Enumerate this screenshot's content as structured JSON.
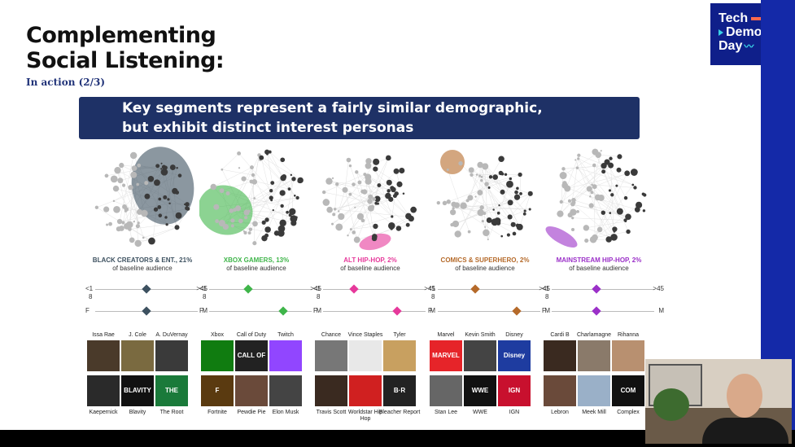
{
  "logo": {
    "line1": "Tech",
    "line2": "Demo",
    "line3": "Day"
  },
  "header": {
    "title_line1": "Complementing",
    "title_line2": "Social Listening:",
    "subtitle": "In action (2/3)"
  },
  "banner": {
    "line1": "Key segments represent a fairly similar demographic,",
    "line2": "but exhibit distinct interest personas"
  },
  "axis_labels": {
    "age_low": "<1",
    "age_low2": "8",
    "age_high": ">45",
    "gender_low": "F",
    "gender_high": "M"
  },
  "segments": [
    {
      "name": "BLACK CREATORS & ENT., 21%",
      "sub": "of baseline audience",
      "color": "#3d5160",
      "age_pos": 0.55,
      "gender_pos": 0.55,
      "tiles": [
        "Issa Rae",
        "J. Cole",
        "A. DuVernay",
        "Kaepernick",
        "Blavity",
        "The Root"
      ]
    },
    {
      "name": "XBOX GAMERS, 13%",
      "sub": "of baseline audience",
      "color": "#3fb54a",
      "age_pos": 0.42,
      "gender_pos": 0.8,
      "tiles": [
        "Xbox",
        "Call of Duty",
        "Twitch",
        "Fortnite",
        "Pewdie Pie",
        "Elon Musk"
      ]
    },
    {
      "name": "ALT HIP-HOP, 2%",
      "sub": "of baseline audience",
      "color": "#e6399b",
      "age_pos": 0.33,
      "gender_pos": 0.8,
      "tiles": [
        "Chance",
        "Vince Staples",
        "Tyler",
        "Travis Scott",
        "Worldstar Hip Hop",
        "Bleacher Report"
      ]
    },
    {
      "name": "COMICS & SUPERHERO, 2%",
      "sub": "of baseline audience",
      "color": "#b56a2a",
      "age_pos": 0.4,
      "gender_pos": 0.85,
      "tiles": [
        "Marvel",
        "Kevin Smith",
        "Disney",
        "Stan Lee",
        "WWE",
        "IGN"
      ]
    },
    {
      "name": "MAINSTREAM HIP-HOP, 2%",
      "sub": "of baseline audience",
      "color": "#9b30c8",
      "age_pos": 0.48,
      "gender_pos": 0.48,
      "tiles": [
        "Cardi B",
        "Charlamagne",
        "Rihanna",
        "Lebron",
        "Meek Mill",
        "Complex"
      ]
    }
  ],
  "tile_logos": {
    "Twitch": "",
    "Blavity": "BLAVITY",
    "The Root": "THE ROOT",
    "Call of Duty": "CALL OF DUTY",
    "Marvel": "MARVEL",
    "Disney": "Disney",
    "WWE": "WWE",
    "IGN": "IGN",
    "Bleacher Report": "B·R",
    "Complex": "COM PLEX",
    "Fortnite": "F"
  }
}
